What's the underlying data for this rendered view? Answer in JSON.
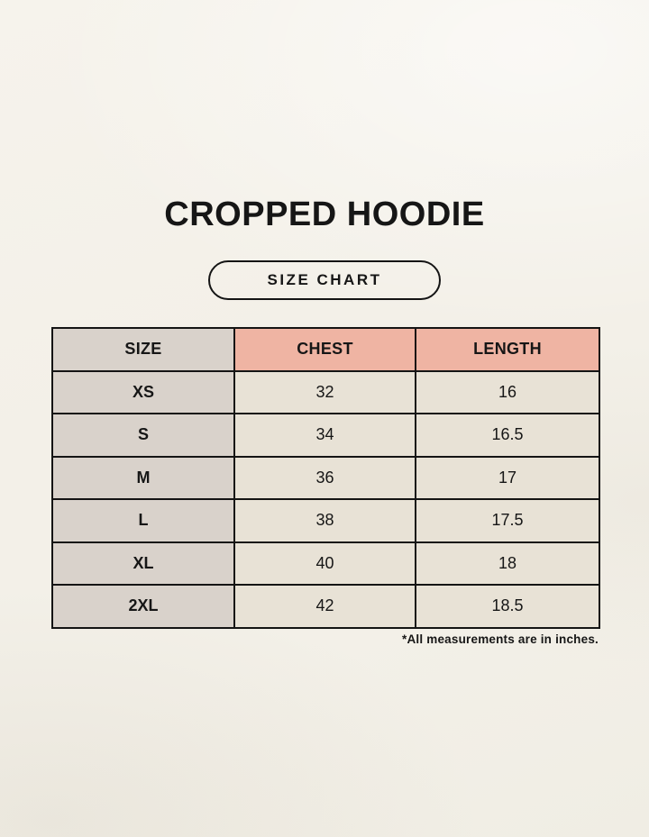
{
  "page": {
    "title": "CROPPED HOODIE",
    "badge_label": "SIZE CHART",
    "footnote": "*All measurements are in inches."
  },
  "colors": {
    "background": "#f3f0e8",
    "header_size_bg": "#d9d2cb",
    "header_measure_bg": "#efb4a3",
    "size_col_bg": "#d9d2cb",
    "cell_bg": "#e8e2d6",
    "border": "#141414",
    "text": "#161616"
  },
  "chart_data": {
    "type": "table",
    "title": "CROPPED HOODIE",
    "subtitle": "SIZE CHART",
    "columns": [
      "SIZE",
      "CHEST",
      "LENGTH"
    ],
    "rows": [
      [
        "XS",
        "32",
        "16"
      ],
      [
        "S",
        "34",
        "16.5"
      ],
      [
        "M",
        "36",
        "17"
      ],
      [
        "L",
        "38",
        "17.5"
      ],
      [
        "XL",
        "40",
        "18"
      ],
      [
        "2XL",
        "42",
        "18.5"
      ]
    ],
    "units": "inches",
    "note": "*All measurements are in inches."
  }
}
